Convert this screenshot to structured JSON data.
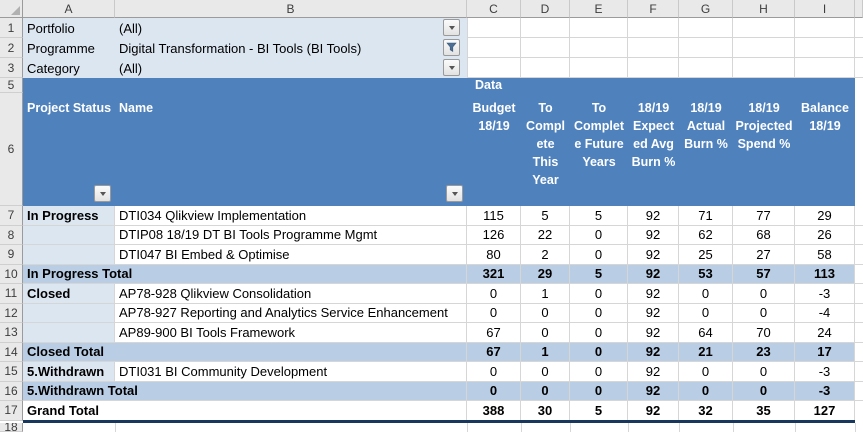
{
  "grid": {
    "column_letters": [
      "A",
      "B",
      "C",
      "D",
      "E",
      "F",
      "G",
      "H",
      "I"
    ],
    "row_numbers": [
      "1",
      "2",
      "3",
      "5",
      "6",
      "7",
      "8",
      "9",
      "10",
      "11",
      "12",
      "13",
      "14",
      "15",
      "16",
      "17",
      "18"
    ]
  },
  "filter_area": {
    "rows": [
      {
        "label": "Portfolio",
        "value": "(All)",
        "button": "dropdown-arrow"
      },
      {
        "label": "Programme",
        "value": "Digital Transformation - BI Tools (BI Tools)",
        "button": "filter-funnel"
      },
      {
        "label": "Category",
        "value": "(All)",
        "button": "dropdown-arrow"
      }
    ]
  },
  "pivot": {
    "data_label": "Data",
    "row_headers": [
      {
        "label": "Project Status"
      },
      {
        "label": "Name"
      }
    ],
    "value_headers": [
      {
        "label": "Budget 18/19",
        "lines": [
          "Budget",
          "18/19"
        ]
      },
      {
        "label": "To Complete This Year",
        "lines": [
          "To",
          "Compl",
          "ete",
          "This",
          "Year"
        ]
      },
      {
        "label": "To Complete Future Years",
        "lines": [
          "To",
          "Complet",
          "e Future",
          "Years"
        ]
      },
      {
        "label": "18/19 Expected Avg Burn %",
        "lines": [
          "18/19",
          "Expect",
          "ed Avg",
          "Burn %"
        ]
      },
      {
        "label": "18/19 Actual Burn %",
        "lines": [
          "18/19",
          "Actual",
          "Burn %"
        ]
      },
      {
        "label": "18/19 Projected Spend %",
        "lines": [
          "18/19",
          "Projected",
          "Spend %"
        ]
      },
      {
        "label": "Balance 18/19",
        "lines": [
          "Balance",
          "18/19"
        ]
      }
    ],
    "rows": [
      {
        "row": "7",
        "type": "item",
        "status": "In Progress",
        "name": "DTI034 Qlikview Implementation",
        "values": [
          "115",
          "5",
          "5",
          "92",
          "71",
          "77",
          "29"
        ]
      },
      {
        "row": "8",
        "type": "item",
        "status": "",
        "name": "DTIP08 18/19 DT BI Tools Programme Mgmt",
        "values": [
          "126",
          "22",
          "0",
          "92",
          "62",
          "68",
          "26"
        ]
      },
      {
        "row": "9",
        "type": "item",
        "status": "",
        "name": "DTI047 BI Embed & Optimise",
        "values": [
          "80",
          "2",
          "0",
          "92",
          "25",
          "27",
          "58"
        ]
      },
      {
        "row": "10",
        "type": "subtotal",
        "label": "In Progress Total",
        "values": [
          "321",
          "29",
          "5",
          "92",
          "53",
          "57",
          "113"
        ]
      },
      {
        "row": "11",
        "type": "item",
        "status": "Closed",
        "name": "AP78-928 Qlikview Consolidation",
        "values": [
          "0",
          "1",
          "0",
          "92",
          "0",
          "0",
          "-3"
        ]
      },
      {
        "row": "12",
        "type": "item",
        "status": "",
        "name": "AP78-927 Reporting and Analytics Service Enhancement",
        "values": [
          "0",
          "0",
          "0",
          "92",
          "0",
          "0",
          "-4"
        ]
      },
      {
        "row": "13",
        "type": "item",
        "status": "",
        "name": "AP89-900 BI Tools Framework",
        "values": [
          "67",
          "0",
          "0",
          "92",
          "64",
          "70",
          "24"
        ]
      },
      {
        "row": "14",
        "type": "subtotal",
        "label": "Closed Total",
        "values": [
          "67",
          "1",
          "0",
          "92",
          "21",
          "23",
          "17"
        ]
      },
      {
        "row": "15",
        "type": "item",
        "status": "5.Withdrawn",
        "name": "DTI031 BI Community Development",
        "values": [
          "0",
          "0",
          "0",
          "92",
          "0",
          "0",
          "-3"
        ]
      },
      {
        "row": "16",
        "type": "subtotal",
        "label": "5.Withdrawn Total",
        "values": [
          "0",
          "0",
          "0",
          "92",
          "0",
          "0",
          "-3"
        ]
      },
      {
        "row": "17",
        "type": "grand_total",
        "label": "Grand Total",
        "values": [
          "388",
          "30",
          "5",
          "92",
          "32",
          "35",
          "127"
        ]
      }
    ]
  },
  "colors": {
    "pivot_header_blue": "#4f81bd",
    "subtotal_blue": "#b9cde5",
    "row_label_tint": "#dce6f1",
    "filter_tint": "#dce6f1",
    "grand_total_border": "#17375d",
    "gridline": "#d6d6d6"
  }
}
